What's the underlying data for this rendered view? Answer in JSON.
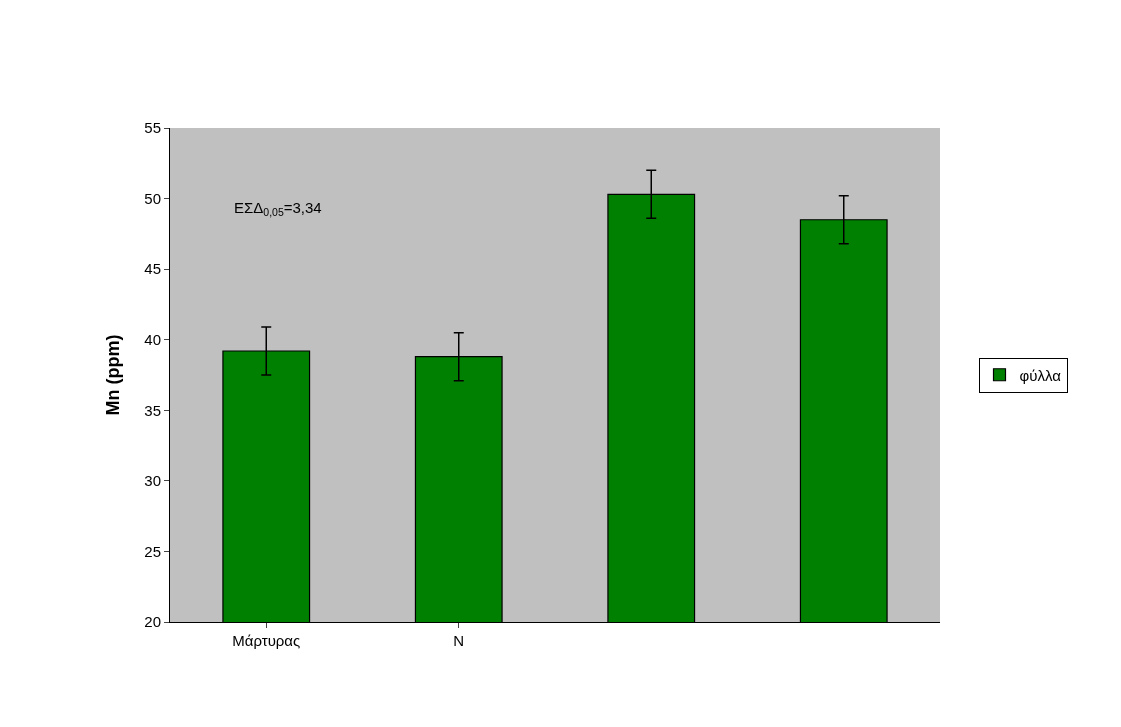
{
  "chart_data": {
    "type": "bar",
    "ylabel": "Mn (ppm)",
    "categories": [
      "Μάρτυρας",
      "N",
      null,
      null
    ],
    "series": [
      {
        "name": "φύλλα",
        "color": "#008000",
        "values": [
          39.2,
          38.8,
          50.3,
          48.5
        ],
        "errors": [
          1.7,
          1.7,
          1.7,
          1.7
        ]
      }
    ],
    "ylim": [
      20,
      55
    ],
    "yticks": [
      20,
      25,
      30,
      35,
      40,
      45,
      50,
      55
    ],
    "grid": false,
    "legend": "right",
    "annotations": [
      "ΕΣΔ$_{0,05}$=3,34"
    ]
  }
}
